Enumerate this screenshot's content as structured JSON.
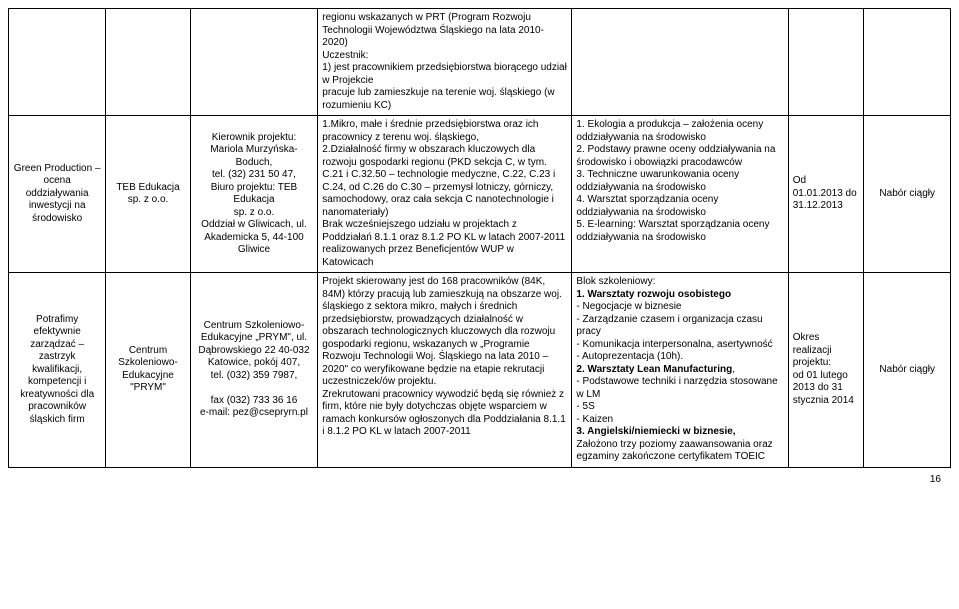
{
  "table": {
    "row0": {
      "col4": "regionu wskazanych w PRT (Program Rozwoju Technologii Województwa Śląskiego na lata 2010-2020)\nUczestnik:\n1)  jest pracownikiem przedsiębiorstwa biorącego udział w Projekcie\npracuje lub zamieszkuje na terenie woj. śląskiego (w rozumieniu KC)"
    },
    "row1": {
      "col1": "Green Production – ocena oddziaływania inwestycji na środowisko",
      "col2": "TEB Edukacja sp. z o.o.",
      "col3": "Kierownik projektu: Mariola Murzyńska-Boduch,\ntel. (32) 231 50 47,\nBiuro projektu: TEB Edukacja\nsp. z o.o.\nOddział w Gliwicach, ul. Akademicka 5, 44-100 Gliwice",
      "col4": "1.Mikro, małe i średnie przedsiębiorstwa oraz ich pracownicy z terenu woj. śląskiego,\n2.Działalność firmy w obszarach kluczowych dla rozwoju gospodarki regionu (PKD sekcja C, w tym. C.21 i C.32.50 – technologie medyczne, C.22, C.23 i C.24, od C.26 do C.30 – przemysł lotniczy, górniczy, samochodowy, oraz cała sekcja C nanotechnologie i nanomateriały)\nBrak wcześniejszego udziału w projektach z Poddziałań 8.1.1 oraz 8.1.2 PO KL w latach 2007-2011 realizowanych przez Beneficjentów WUP w Katowicach",
      "col5": "1.  Ekologia a produkcja – założenia oceny oddziaływania na środowisko\n2.  Podstawy prawne oceny oddziaływania na środowisko i obowiązki pracodawców\n3.  Techniczne uwarunkowania oceny oddziaływania na środowisko\n4.  Warsztat sporządzania oceny oddziaływania na środowisko\n5.  E-learning: Warsztat sporządzania oceny oddziaływania na środowisko",
      "col6": "Od\n01.01.2013 do 31.12.2013",
      "col7": "Nabór ciągły"
    },
    "row2": {
      "col1": "Potrafimy efektywnie zarządzać – zastrzyk kwalifikacji, kompetencji i kreatywności dla pracowników śląskich firm",
      "col2": "Centrum Szkoleniowo-Edukacyjne \"PRYM\"",
      "col3": "Centrum Szkoleniowo-Edukacyjne „PRYM\", ul. Dąbrowskiego 22 40-032 Katowice, pokój 407,\ntel. (032) 359 7987,\n\nfax (032) 733 36 16\ne-mail: pez@csepryrn.pl",
      "col4": "Projekt skierowany jest do 168 pracowników (84K, 84M) którzy pracują lub zamieszkują na obszarze woj. śląskiego z sektora mikro, małych i średnich przedsiębiorstw, prowadzących działalność w obszarach technologicznych kluczowych dla rozwoju gospodarki regionu, wskazanych w „Programie Rozwoju Technologii Woj. Śląskiego na lata 2010 – 2020\" co weryfikowane będzie na etapie rekrutacji uczestniczek/ów projektu.\nZrekrutowani pracownicy wywodzić będą się również z firm, które nie były dotychczas objęte wsparciem w ramach konkursów ogłoszonych dla Poddziałania 8.1.1 i 8.1.2 PO KL w latach 2007-2011",
      "col5_intro": "Blok szkoleniowy:",
      "col5_1_title": "1.  Warsztaty rozwoju osobistego",
      "col5_1_body": "- Negocjacje w biznesie\n- Zarządzanie czasem i organizacja czasu pracy\n - Komunikacja interpersonalna, asertywność\n- Autoprezentacja (10h).",
      "col5_2_title": "2.  Warsztaty Lean Manufacturing",
      "col5_2_body": ",\n- Podstawowe techniki i narzędzia stosowane w LM\n- 5S\n- Kaizen",
      "col5_3_title": "3.  Angielski/niemiecki w biznesie,",
      "col5_3_body": "Założono trzy poziomy zaawansowania oraz egzaminy zakończone certyfikatem TOEIC",
      "col6": "Okres realizacji projektu:\nod 01 lutego 2013 do 31 stycznia 2014",
      "col7": "Nabór ciągły"
    }
  },
  "pageNumber": "16"
}
